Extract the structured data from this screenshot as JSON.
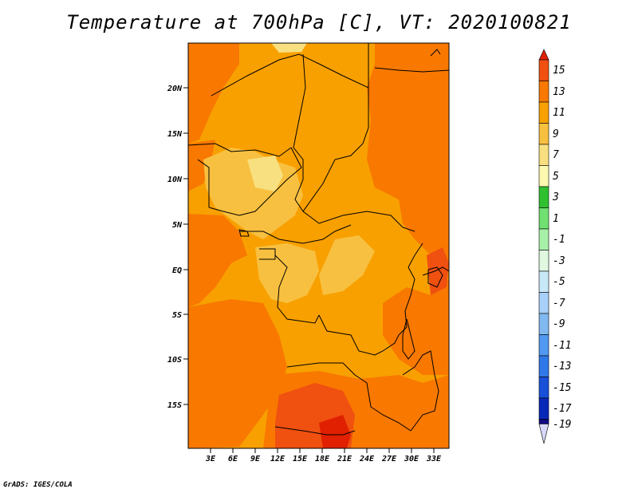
{
  "title": "Temperature at 700hPa [C], VT: 2020100821",
  "credit": "GrADS: IGES/COLA",
  "map": {
    "lat_labels": [
      "20N",
      "15N",
      "10N",
      "5N",
      "EQ",
      "5S",
      "10S",
      "15S"
    ],
    "lon_labels": [
      "3E",
      "6E",
      "9E",
      "12E",
      "15E",
      "18E",
      "21E",
      "24E",
      "27E",
      "30E",
      "33E"
    ],
    "base_color": "#f8a000"
  },
  "colorbar": {
    "labels": [
      "15",
      "13",
      "11",
      "9",
      "7",
      "5",
      "3",
      "1",
      "-1",
      "-3",
      "-5",
      "-7",
      "-9",
      "-11",
      "-13",
      "-15",
      "-17",
      "-19"
    ],
    "colors": [
      "#e02000",
      "#f05010",
      "#f87800",
      "#f8a000",
      "#f8c040",
      "#f8e080",
      "#fcf8b0",
      "#30c030",
      "#70e070",
      "#a8f0a8",
      "#e0f8e0",
      "#c8e8f8",
      "#a8d0f8",
      "#80b8f0",
      "#5098f0",
      "#3078e8",
      "#1850d8",
      "#0828b8",
      "#100880",
      "#d8d8f8"
    ]
  }
}
